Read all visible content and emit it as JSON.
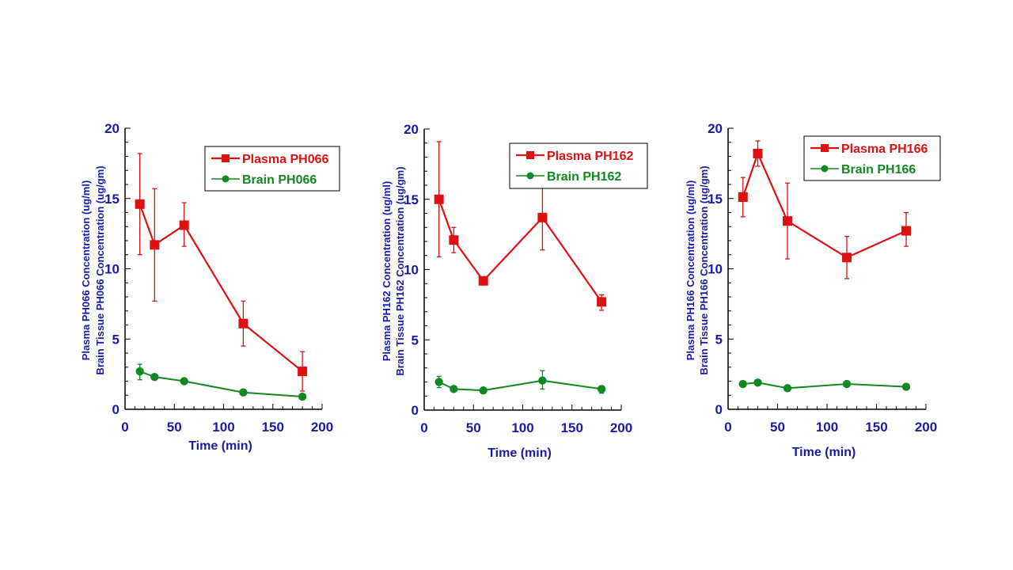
{
  "chart_data": [
    {
      "type": "line",
      "title": "",
      "xlabel": "Time (min)",
      "ylabel_lines": [
        "Plasma PH066 Concentration (ug/ml)",
        "Brain Tissue PH066 Concentration (ug/gm)"
      ],
      "xlim": [
        0,
        200
      ],
      "ylim": [
        0,
        20
      ],
      "xticks": [
        0,
        50,
        100,
        150,
        200
      ],
      "yticks": [
        0,
        5,
        10,
        15,
        20
      ],
      "grid": false,
      "legend_position": "top-right",
      "series": [
        {
          "name": "Plasma PH066",
          "color": "#dd1111",
          "marker": "square",
          "x": [
            15,
            30,
            60,
            120,
            180
          ],
          "values": [
            14.6,
            11.7,
            13.1,
            6.1,
            2.7
          ],
          "error_low": [
            11.0,
            7.7,
            11.6,
            4.5,
            1.3
          ],
          "error_high": [
            18.2,
            15.7,
            14.7,
            7.7,
            4.1
          ]
        },
        {
          "name": "Brain PH066",
          "color": "#118822",
          "marker": "circle",
          "x": [
            15,
            30,
            60,
            120,
            180
          ],
          "values": [
            2.7,
            2.3,
            2.0,
            1.2,
            0.9
          ],
          "error_low": [
            2.1,
            2.2,
            1.9,
            1.1,
            0.7
          ],
          "error_high": [
            3.2,
            2.4,
            2.1,
            1.3,
            1.1
          ]
        }
      ]
    },
    {
      "type": "line",
      "title": "",
      "xlabel": "Time (min)",
      "ylabel_lines": [
        "Plasma PH162 Concentration (ug/ml)",
        "Brain Tissue PH162 Concentration (ug/gm)"
      ],
      "xlim": [
        0,
        200
      ],
      "ylim": [
        0,
        20
      ],
      "xticks": [
        0,
        50,
        100,
        150,
        200
      ],
      "yticks": [
        0,
        5,
        10,
        15,
        20
      ],
      "grid": false,
      "legend_position": "top-right",
      "series": [
        {
          "name": "Plasma PH162",
          "color": "#dd1111",
          "marker": "square",
          "x": [
            15,
            30,
            60,
            120,
            180
          ],
          "values": [
            15.0,
            12.1,
            9.2,
            13.7,
            7.7
          ],
          "error_low": [
            10.9,
            11.2,
            8.9,
            11.4,
            7.1
          ],
          "error_high": [
            19.1,
            13.0,
            9.4,
            15.9,
            8.2
          ]
        },
        {
          "name": "Brain PH162",
          "color": "#118822",
          "marker": "circle",
          "x": [
            15,
            30,
            60,
            120,
            180
          ],
          "values": [
            2.0,
            1.5,
            1.4,
            2.1,
            1.5
          ],
          "error_low": [
            1.6,
            1.4,
            1.3,
            1.5,
            1.2
          ],
          "error_high": [
            2.4,
            1.6,
            1.5,
            2.8,
            1.7
          ]
        }
      ]
    },
    {
      "type": "line",
      "title": "",
      "xlabel": "Time (min)",
      "ylabel_lines": [
        "Plasma PH166 Concentration (ug/ml)",
        "Brain Tissue PH166 Concentration (ug/gm)"
      ],
      "xlim": [
        0,
        200
      ],
      "ylim": [
        0,
        20
      ],
      "xticks": [
        0,
        50,
        100,
        150,
        200
      ],
      "yticks": [
        0,
        5,
        10,
        15,
        20
      ],
      "grid": false,
      "legend_position": "top-right",
      "series": [
        {
          "name": "Plasma PH166",
          "color": "#dd1111",
          "marker": "square",
          "x": [
            15,
            30,
            60,
            120,
            180
          ],
          "values": [
            15.1,
            18.2,
            13.4,
            10.8,
            12.7
          ],
          "error_low": [
            13.7,
            17.3,
            10.7,
            9.3,
            11.6
          ],
          "error_high": [
            16.5,
            19.1,
            16.1,
            12.3,
            14.0
          ]
        },
        {
          "name": "Brain PH166",
          "color": "#118822",
          "marker": "circle",
          "x": [
            15,
            30,
            60,
            120,
            180
          ],
          "values": [
            1.8,
            1.9,
            1.5,
            1.8,
            1.6
          ],
          "error_low": [
            1.7,
            1.8,
            1.4,
            1.7,
            1.5
          ],
          "error_high": [
            1.9,
            2.0,
            1.6,
            1.9,
            1.7
          ]
        }
      ]
    }
  ]
}
